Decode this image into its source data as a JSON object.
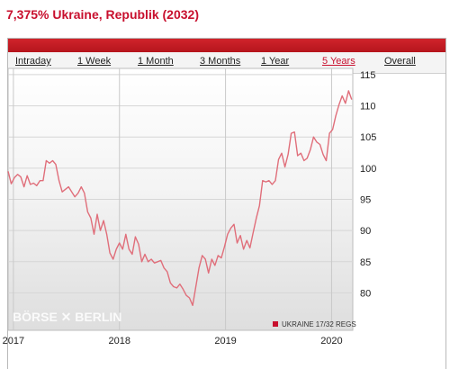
{
  "page": {
    "title": "7,375% Ukraine, Republik (2032)"
  },
  "range_tabs": {
    "items": [
      {
        "label": "Intraday",
        "active": false
      },
      {
        "label": "1 Week",
        "active": false
      },
      {
        "label": "1 Month",
        "active": false
      },
      {
        "label": "3 Months",
        "active": false
      },
      {
        "label": "1 Year",
        "active": false
      },
      {
        "label": "5 Years",
        "active": true
      },
      {
        "label": "Overall",
        "active": false
      }
    ]
  },
  "chart": {
    "watermark": "BÖRSE ✕ BERLIN",
    "legend_label": "UKRAINE 17/32 REGS"
  },
  "colors": {
    "accent": "#c8102e",
    "line": "#e06e7a",
    "legend_swatch": "#c8102e"
  },
  "chart_data": {
    "type": "line",
    "title": "",
    "xlabel": "",
    "ylabel": "",
    "ylim": [
      74,
      116
    ],
    "xlim": [
      2016.95,
      2020.2
    ],
    "x_ticks": [
      2017,
      2018,
      2019,
      2020
    ],
    "x_tick_labels": [
      "2017",
      "2018",
      "2019",
      "2020"
    ],
    "y_ticks": [
      80,
      85,
      90,
      95,
      100,
      105,
      110,
      115
    ],
    "y_tick_labels": [
      "80",
      "85",
      "90",
      "95",
      "100",
      "105",
      "110",
      "115"
    ],
    "grid": true,
    "legend": "bottom-right",
    "series": [
      {
        "name": "UKRAINE 17/32 REGS",
        "x": [
          2016.95,
          2016.98,
          2017.01,
          2017.04,
          2017.07,
          2017.1,
          2017.13,
          2017.16,
          2017.19,
          2017.22,
          2017.25,
          2017.28,
          2017.31,
          2017.34,
          2017.37,
          2017.4,
          2017.43,
          2017.46,
          2017.49,
          2017.52,
          2017.55,
          2017.58,
          2017.61,
          2017.64,
          2017.67,
          2017.7,
          2017.73,
          2017.76,
          2017.79,
          2017.82,
          2017.85,
          2017.88,
          2017.91,
          2017.94,
          2017.97,
          2018.0,
          2018.03,
          2018.06,
          2018.09,
          2018.12,
          2018.15,
          2018.18,
          2018.21,
          2018.24,
          2018.27,
          2018.3,
          2018.33,
          2018.36,
          2018.39,
          2018.42,
          2018.45,
          2018.48,
          2018.51,
          2018.54,
          2018.57,
          2018.6,
          2018.63,
          2018.66,
          2018.69,
          2018.72,
          2018.75,
          2018.78,
          2018.81,
          2018.84,
          2018.87,
          2018.9,
          2018.93,
          2018.96,
          2018.99,
          2019.02,
          2019.05,
          2019.08,
          2019.11,
          2019.14,
          2019.17,
          2019.2,
          2019.23,
          2019.26,
          2019.29,
          2019.32,
          2019.35,
          2019.38,
          2019.41,
          2019.44,
          2019.47,
          2019.5,
          2019.53,
          2019.56,
          2019.59,
          2019.62,
          2019.65,
          2019.68,
          2019.71,
          2019.74,
          2019.77,
          2019.8,
          2019.83,
          2019.86,
          2019.89,
          2019.92,
          2019.95,
          2019.98,
          2020.01,
          2020.04,
          2020.07,
          2020.1,
          2020.13,
          2020.16,
          2020.19
        ],
        "values": [
          99.5,
          97.5,
          98.5,
          99.0,
          98.6,
          97.0,
          98.8,
          97.4,
          97.6,
          97.2,
          98.0,
          98.0,
          101.2,
          100.8,
          101.2,
          100.6,
          98.0,
          96.2,
          96.6,
          97.0,
          96.2,
          95.4,
          96.0,
          97.0,
          96.0,
          93.0,
          92.0,
          89.4,
          92.6,
          90.0,
          91.6,
          89.4,
          86.4,
          85.4,
          87.0,
          88.0,
          87.0,
          89.4,
          87.0,
          86.2,
          89.0,
          87.8,
          85.0,
          86.2,
          85.0,
          85.4,
          84.8,
          85.0,
          85.2,
          84.0,
          83.4,
          81.6,
          81.0,
          80.8,
          81.4,
          80.6,
          79.6,
          79.2,
          78.0,
          81.0,
          84.0,
          86.0,
          85.4,
          83.2,
          85.4,
          84.4,
          86.0,
          85.6,
          87.4,
          89.4,
          90.4,
          91.0,
          88.0,
          89.2,
          87.0,
          88.4,
          87.2,
          89.6,
          92.0,
          94.0,
          98.0,
          97.8,
          98.0,
          97.4,
          98.0,
          101.4,
          102.4,
          100.2,
          102.2,
          105.6,
          105.8,
          102.0,
          102.4,
          101.2,
          101.6,
          103.0,
          105.0,
          104.2,
          103.8,
          102.2,
          101.2,
          105.6,
          106.2,
          108.4,
          110.2,
          111.6,
          110.4,
          112.4,
          111.0
        ]
      }
    ]
  }
}
